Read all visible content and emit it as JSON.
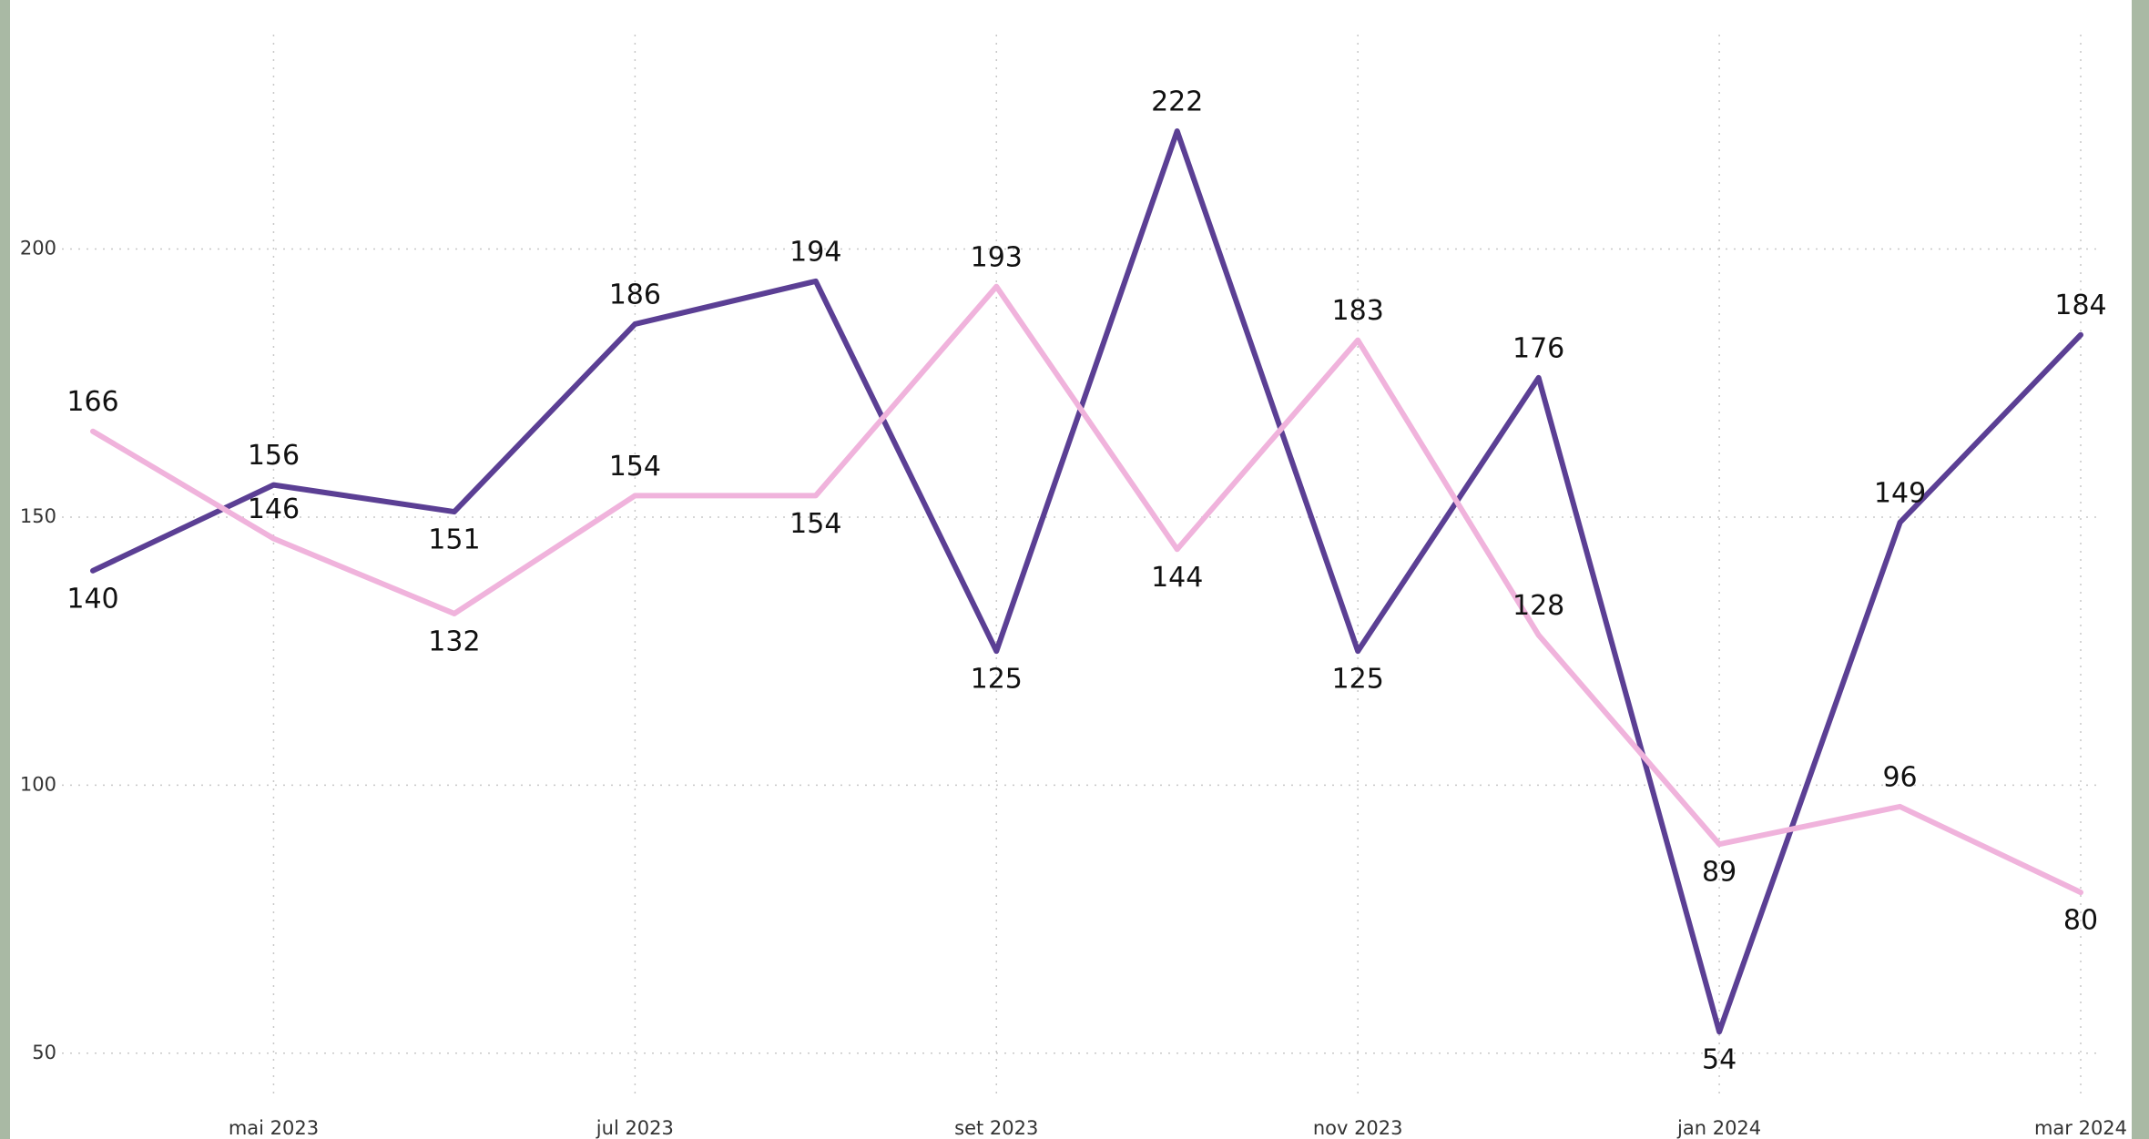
{
  "chart_data": {
    "type": "line",
    "categories": [
      null,
      "mai 2023",
      null,
      "jul 2023",
      null,
      "set 2023",
      null,
      "nov 2023",
      null,
      "jan 2024",
      null,
      "mar 2024"
    ],
    "series": [
      {
        "color": "#5b3f94",
        "values": [
          140,
          156,
          151,
          186,
          194,
          125,
          222,
          125,
          176,
          54,
          149,
          184
        ]
      },
      {
        "color": "#f0b3dc",
        "values": [
          166,
          146,
          132,
          154,
          154,
          193,
          144,
          183,
          128,
          89,
          96,
          80
        ]
      }
    ],
    "ylim": [
      34,
      240
    ],
    "yticks": [
      50,
      100,
      150,
      200
    ],
    "grid": true,
    "data_labels": true
  }
}
